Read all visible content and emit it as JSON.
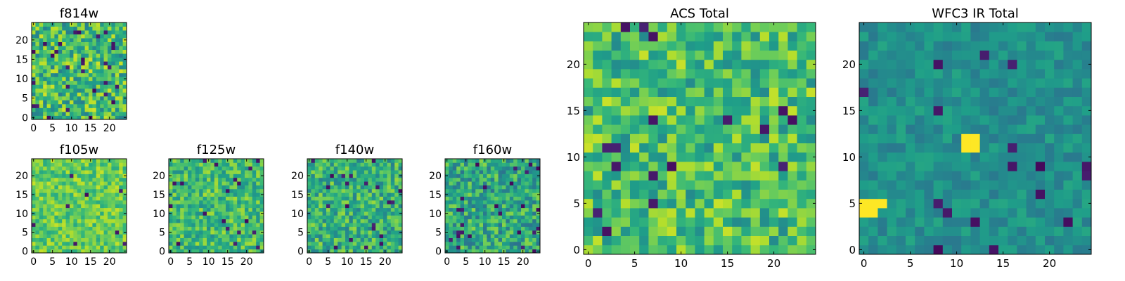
{
  "figure": {
    "colormap": "viridis",
    "colors": {
      "low": "#440154",
      "mid": "#21918c",
      "high": "#fde725"
    }
  },
  "chart_data": [
    {
      "id": "f814w",
      "type": "heatmap",
      "title": "f814w",
      "grid_size": [
        25,
        25
      ],
      "xticks": [
        "0",
        "5",
        "10",
        "15",
        "20"
      ],
      "yticks": [
        "0",
        "5",
        "10",
        "15",
        "20"
      ],
      "xlim": [
        -0.5,
        24.5
      ],
      "ylim": [
        -0.5,
        24.5
      ],
      "mean_level": 0.68,
      "spread": 0.16,
      "seed": 814,
      "dark_fraction": 0.05,
      "bright_spots": []
    },
    {
      "id": "f105w",
      "type": "heatmap",
      "title": "f105w",
      "grid_size": [
        25,
        25
      ],
      "xticks": [
        "0",
        "5",
        "10",
        "15",
        "20"
      ],
      "yticks": [
        "0",
        "5",
        "10",
        "15",
        "20"
      ],
      "xlim": [
        -0.5,
        24.5
      ],
      "ylim": [
        -0.5,
        24.5
      ],
      "mean_level": 0.76,
      "spread": 0.1,
      "seed": 105,
      "dark_fraction": 0.015,
      "bright_spots": []
    },
    {
      "id": "f125w",
      "type": "heatmap",
      "title": "f125w",
      "grid_size": [
        25,
        25
      ],
      "xticks": [
        "0",
        "5",
        "10",
        "15",
        "20"
      ],
      "yticks": [
        "0",
        "5",
        "10",
        "15",
        "20"
      ],
      "xlim": [
        -0.5,
        24.5
      ],
      "ylim": [
        -0.5,
        24.5
      ],
      "mean_level": 0.68,
      "spread": 0.12,
      "seed": 125,
      "dark_fraction": 0.03,
      "bright_spots": []
    },
    {
      "id": "f140w",
      "type": "heatmap",
      "title": "f140w",
      "grid_size": [
        25,
        25
      ],
      "xticks": [
        "0",
        "5",
        "10",
        "15",
        "20"
      ],
      "yticks": [
        "0",
        "5",
        "10",
        "15",
        "20"
      ],
      "xlim": [
        -0.5,
        24.5
      ],
      "ylim": [
        -0.5,
        24.5
      ],
      "mean_level": 0.64,
      "spread": 0.13,
      "seed": 140,
      "dark_fraction": 0.03,
      "bright_spots": []
    },
    {
      "id": "f160w",
      "type": "heatmap",
      "title": "f160w",
      "grid_size": [
        25,
        25
      ],
      "xticks": [
        "0",
        "5",
        "10",
        "15",
        "20"
      ],
      "yticks": [
        "0",
        "5",
        "10",
        "15",
        "20"
      ],
      "xlim": [
        -0.5,
        24.5
      ],
      "ylim": [
        -0.5,
        24.5
      ],
      "mean_level": 0.6,
      "spread": 0.14,
      "seed": 160,
      "dark_fraction": 0.035,
      "bright_spots": []
    },
    {
      "id": "acs-total",
      "type": "heatmap",
      "title": "ACS Total",
      "grid_size": [
        25,
        25
      ],
      "xticks": [
        "0",
        "5",
        "10",
        "15",
        "20"
      ],
      "yticks": [
        "0",
        "5",
        "10",
        "15",
        "20"
      ],
      "xlim": [
        -0.5,
        24.5
      ],
      "ylim": [
        -0.5,
        24.5
      ],
      "mean_level": 0.7,
      "spread": 0.14,
      "seed": 7,
      "dark_fraction": 0.025,
      "bright_spots": []
    },
    {
      "id": "wfc3-ir-total",
      "type": "heatmap",
      "title": "WFC3 IR Total",
      "grid_size": [
        25,
        25
      ],
      "xticks": [
        "0",
        "5",
        "10",
        "15",
        "20"
      ],
      "yticks": [
        "0",
        "5",
        "10",
        "15",
        "20"
      ],
      "xlim": [
        -0.5,
        24.5
      ],
      "ylim": [
        -0.5,
        24.5
      ],
      "mean_level": 0.5,
      "spread": 0.06,
      "seed": 31,
      "dark_fraction": 0.022,
      "bright_spots": [
        [
          11,
          11
        ],
        [
          11,
          12
        ],
        [
          12,
          11
        ],
        [
          12,
          12
        ],
        [
          0,
          5
        ],
        [
          1,
          5
        ],
        [
          0,
          4
        ],
        [
          1,
          4
        ],
        [
          2,
          5
        ]
      ]
    }
  ]
}
